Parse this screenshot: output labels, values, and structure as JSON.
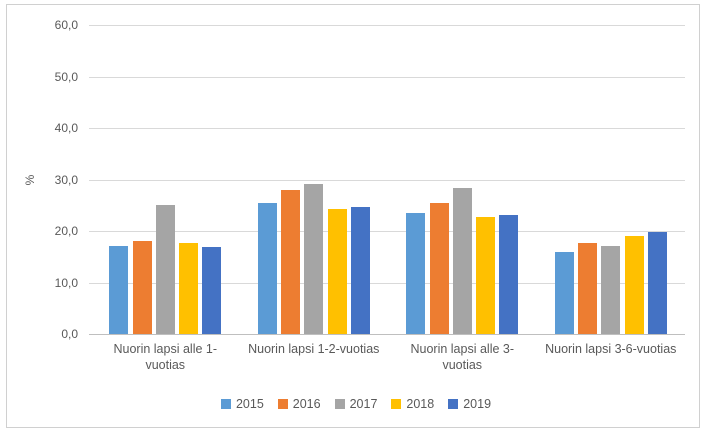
{
  "chart_data": {
    "type": "bar",
    "title": "",
    "xlabel": "",
    "ylabel": "%",
    "categories": [
      "Nuorin lapsi alle 1-vuotias",
      "Nuorin lapsi 1-2-vuotias",
      "Nuorin lapsi alle 3-vuotias",
      "Nuorin lapsi 3-6-vuotias"
    ],
    "category_label_lines": [
      [
        "Nuorin lapsi alle 1-",
        "vuotias"
      ],
      [
        "Nuorin lapsi 1-2-vuotias"
      ],
      [
        "Nuorin lapsi alle 3-",
        "vuotias"
      ],
      [
        "Nuorin lapsi 3-6-vuotias"
      ]
    ],
    "series": [
      {
        "name": "2015",
        "color": "#5B9BD5",
        "values": [
          17.0,
          25.5,
          23.4,
          16.0
        ]
      },
      {
        "name": "2016",
        "color": "#ED7D31",
        "values": [
          18.1,
          27.9,
          25.5,
          17.6
        ]
      },
      {
        "name": "2017",
        "color": "#A5A5A5",
        "values": [
          25.1,
          29.2,
          28.4,
          17.0
        ]
      },
      {
        "name": "2018",
        "color": "#FFC000",
        "values": [
          17.6,
          24.2,
          22.8,
          19.0
        ]
      },
      {
        "name": "2019",
        "color": "#4472C4",
        "values": [
          16.8,
          24.6,
          23.1,
          19.9
        ]
      }
    ],
    "ylim": [
      0,
      60
    ],
    "ytick_step": 10,
    "ytick_labels": [
      "0,0",
      "10,0",
      "20,0",
      "30,0",
      "40,0",
      "50,0",
      "60,0"
    ],
    "grid": true,
    "legend_position": "bottom",
    "legend": [
      "2015",
      "2016",
      "2017",
      "2018",
      "2019"
    ]
  },
  "style": {
    "background": "#FFFFFF",
    "frame_border": "#D0D0D0",
    "gridline_color": "#D9D9D9",
    "axis_line_color": "#BFBFBF",
    "text_color": "#595959"
  }
}
